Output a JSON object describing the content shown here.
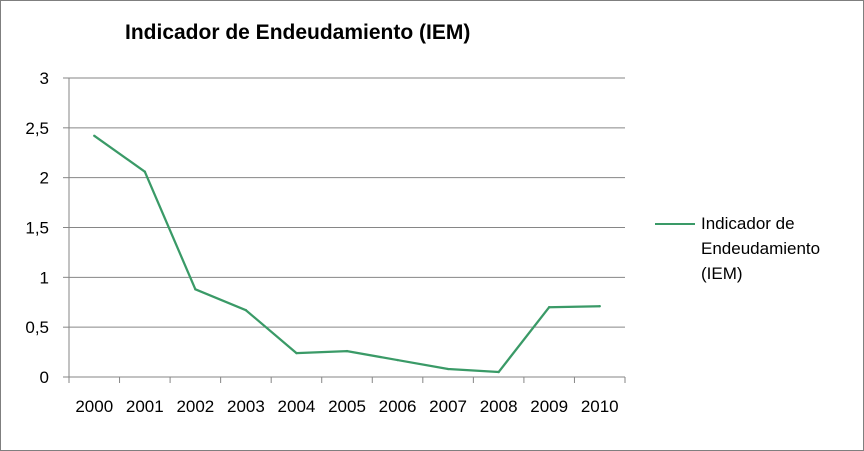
{
  "chart_data": {
    "type": "line",
    "title": "Indicador de Endeudamiento (IEM)",
    "categories": [
      "2000",
      "2001",
      "2002",
      "2003",
      "2004",
      "2005",
      "2006",
      "2007",
      "2008",
      "2009",
      "2010"
    ],
    "series": [
      {
        "name": "Indicador de Endeudamiento (IEM)",
        "values": [
          2.42,
          2.06,
          0.88,
          0.67,
          0.24,
          0.26,
          0.17,
          0.08,
          0.05,
          0.7,
          0.71
        ],
        "color": "#3a9a67"
      }
    ],
    "y_ticks": [
      "0",
      "0,5",
      "1",
      "1,5",
      "2",
      "2,5",
      "3"
    ],
    "ylim": [
      0,
      3
    ],
    "grid": true,
    "legend": "right",
    "xlabel": "",
    "ylabel": ""
  }
}
